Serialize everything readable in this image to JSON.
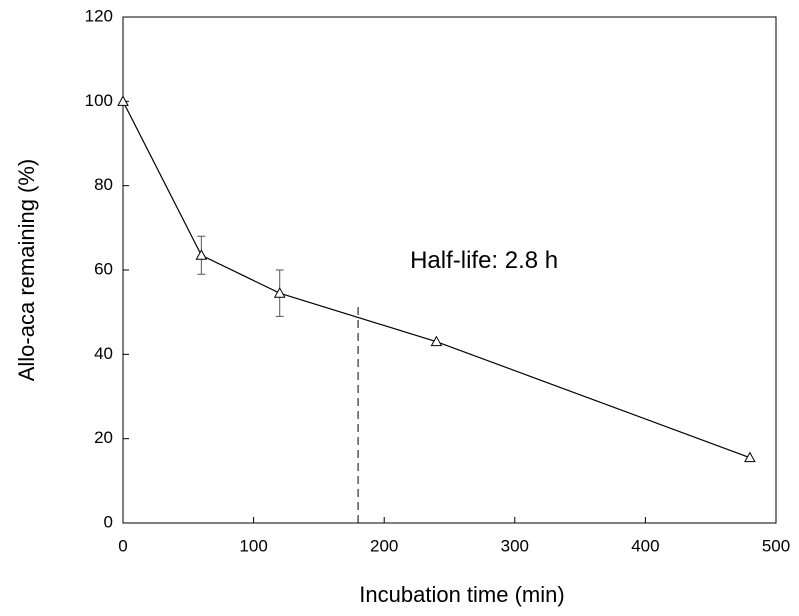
{
  "chart_data": {
    "type": "line",
    "x_label": "Incubation time (min)",
    "y_label": "Allo-aca remaining (%)",
    "annotation": "Half-life: 2.8 h",
    "x": [
      0,
      60,
      120,
      240,
      480
    ],
    "series": [
      {
        "color": "#000000",
        "marker": "triangle-open",
        "values": [
          100,
          63.5,
          54.5,
          43,
          15.5
        ],
        "errors": [
          null,
          4.5,
          5.5,
          null,
          null
        ]
      }
    ],
    "vline": {
      "x": 180,
      "y": [
        0,
        52
      ],
      "style": "dashed"
    },
    "xlim": [
      0,
      500
    ],
    "xticks": [
      0,
      100,
      200,
      300,
      400,
      500
    ],
    "ylim": [
      0,
      120
    ],
    "yticks": [
      0,
      20,
      40,
      60,
      80,
      100,
      120
    ],
    "grid": false
  }
}
